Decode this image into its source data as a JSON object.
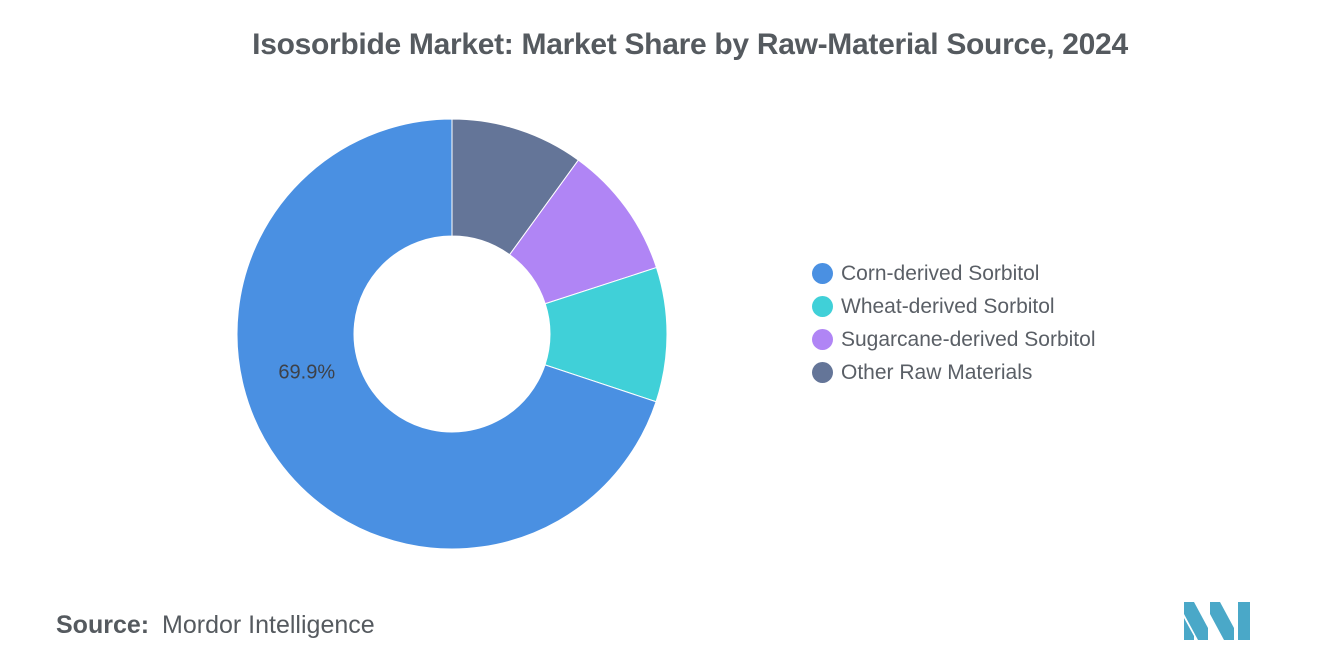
{
  "chart_data": {
    "type": "pie",
    "title": "Isosorbide Market: Market Share by Raw-Material Source, 2024",
    "donut": true,
    "categories": [
      "Corn-derived Sorbitol",
      "Wheat-derived Sorbitol",
      "Sugarcane-derived Sorbitol",
      "Other Raw Materials"
    ],
    "values": [
      69.9,
      10.1,
      10.0,
      10.0
    ],
    "data_labels": [
      "69.9%",
      "",
      "",
      ""
    ],
    "colors": [
      "#4a90e2",
      "#40d0d8",
      "#b085f5",
      "#647598"
    ],
    "legend_position": "right"
  },
  "source": {
    "label": "Source:",
    "value": "Mordor Intelligence"
  },
  "logo": {
    "icon": "mordor-intelligence-logo-icon",
    "color": "#4aa8c8"
  }
}
